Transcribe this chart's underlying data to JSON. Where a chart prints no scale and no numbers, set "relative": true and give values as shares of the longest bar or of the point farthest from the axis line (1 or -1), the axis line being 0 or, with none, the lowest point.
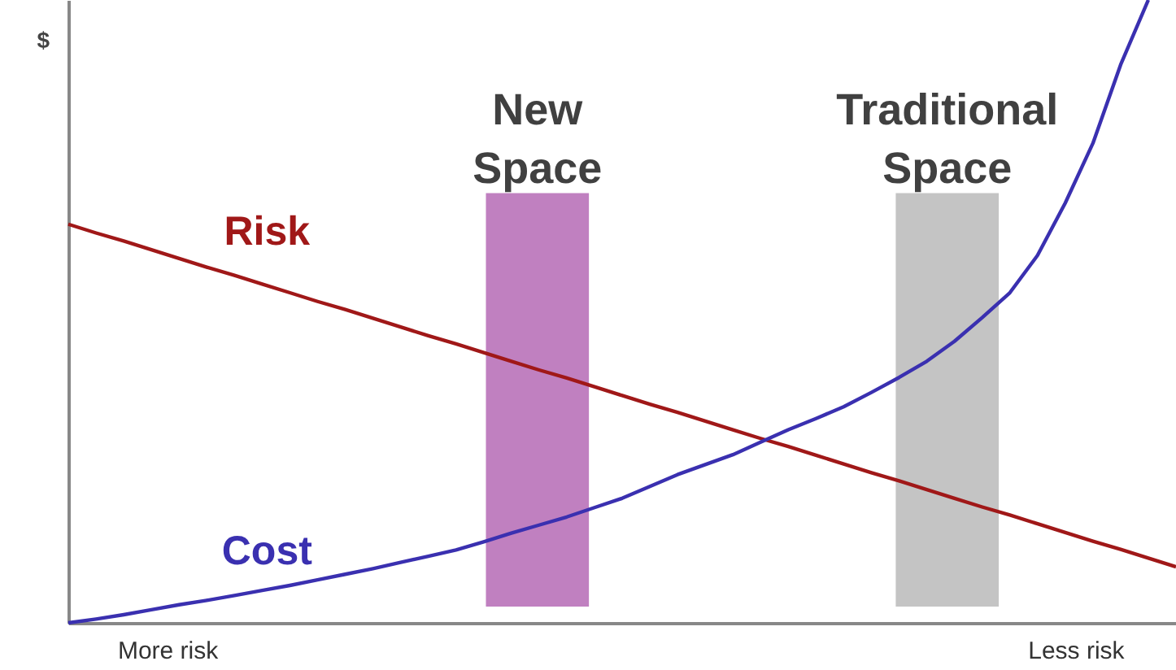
{
  "chart_data": {
    "type": "line",
    "relative": true,
    "ylabel": "$",
    "categories": [
      null,
      null,
      null,
      null,
      null,
      null,
      null,
      null,
      null,
      null,
      null,
      null,
      null,
      null,
      null,
      null,
      null,
      null,
      null,
      null,
      null,
      null,
      null,
      null,
      null,
      null,
      null,
      null,
      null,
      null,
      null,
      null,
      null,
      null,
      null,
      null,
      null,
      null,
      null,
      null,
      null
    ],
    "series": [
      {
        "name": "Risk",
        "color": "#a01818",
        "values": [
          0.64,
          0.626,
          0.613,
          0.599,
          0.585,
          0.571,
          0.558,
          0.544,
          0.53,
          0.516,
          0.503,
          0.489,
          0.475,
          0.461,
          0.448,
          0.434,
          0.42,
          0.406,
          0.393,
          0.379,
          0.365,
          0.351,
          0.338,
          0.324,
          0.31,
          0.296,
          0.283,
          0.269,
          0.255,
          0.241,
          0.228,
          0.214,
          0.2,
          0.186,
          0.173,
          0.159,
          0.145,
          0.131,
          0.118,
          0.104,
          0.09
        ]
      },
      {
        "name": "Cost",
        "color": "#3a30b0",
        "values": [
          0,
          0.006,
          0.013,
          0.021,
          0.029,
          0.036,
          0.044,
          0.052,
          0.06,
          0.069,
          0.078,
          0.087,
          0.097,
          0.107,
          0.117,
          0.13,
          0.144,
          0.157,
          0.17,
          0.185,
          0.2,
          0.219,
          0.238,
          0.254,
          0.27,
          0.29,
          0.31,
          0.328,
          0.347,
          0.37,
          0.394,
          0.42,
          0.452,
          0.49,
          0.53,
          0.59,
          0.674,
          0.77,
          0.896,
          1.0,
          null
        ]
      }
    ],
    "annotations": [
      "New Space",
      "Traditional Space",
      "More risk",
      "Less risk"
    ],
    "grid": false,
    "marker": "none",
    "line_style": "solid"
  }
}
